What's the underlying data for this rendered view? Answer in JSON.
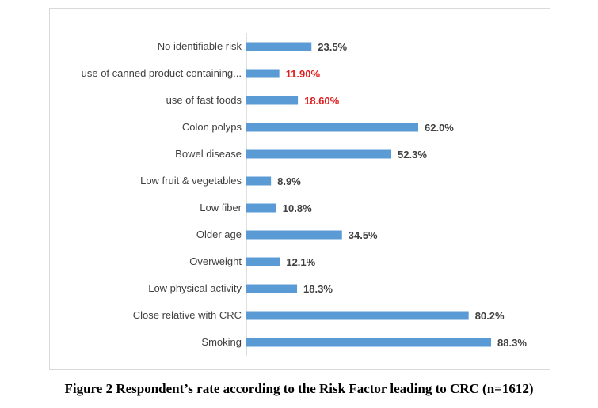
{
  "caption": "Figure 2 Respondent’s rate according to the Risk Factor leading to CRC (n=1612)",
  "colors": {
    "bar": "#5b9bd5",
    "label_default": "#404040",
    "label_highlight": "#e02020",
    "axis": "#bfbfbf",
    "frame_border": "#d9d9d9"
  },
  "chart_data": {
    "type": "bar",
    "orientation": "horizontal",
    "title": "",
    "xlabel": "",
    "ylabel": "",
    "grid": false,
    "xlim": [
      0,
      100
    ],
    "categories": [
      "No identifiable risk",
      "use of canned product containing...",
      "use of fast foods",
      "Colon polyps",
      "Bowel disease",
      "Low fruit & vegetables",
      "Low fiber",
      "Older age",
      "Overweight",
      "Low physical activity",
      "Close relative with CRC",
      "Smoking"
    ],
    "values": [
      23.5,
      11.9,
      18.6,
      62.0,
      52.3,
      8.9,
      10.8,
      34.5,
      12.1,
      18.3,
      80.2,
      88.3
    ],
    "data_labels": [
      "23.5%",
      "11.90%",
      "18.60%",
      "62.0%",
      "52.3%",
      "8.9%",
      "10.8%",
      "34.5%",
      "12.1%",
      "18.3%",
      "80.2%",
      "88.3%"
    ],
    "highlighted": [
      false,
      true,
      true,
      false,
      false,
      false,
      false,
      false,
      false,
      false,
      false,
      false
    ]
  }
}
